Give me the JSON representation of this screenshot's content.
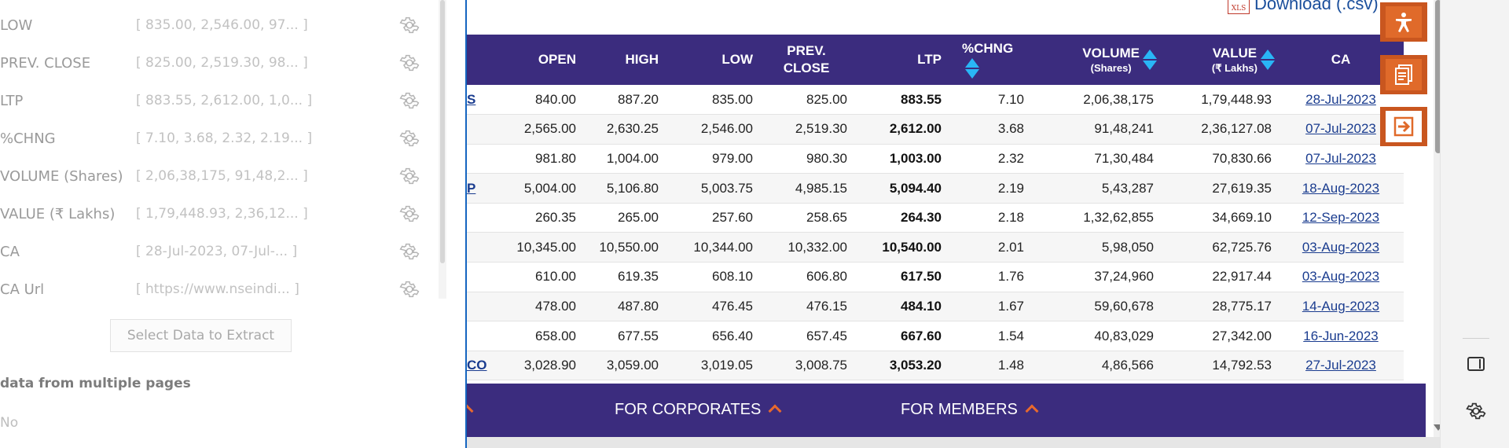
{
  "left_panel": {
    "fields": [
      {
        "name": "LOW",
        "value": "[ 835.00, 2,546.00, 97... ]"
      },
      {
        "name": "PREV. CLOSE",
        "value": "[ 825.00, 2,519.30, 98... ]"
      },
      {
        "name": "LTP",
        "value": "[ 883.55, 2,612.00, 1,0... ]"
      },
      {
        "name": "%CHNG",
        "value": "[ 7.10, 3.68, 2.32, 2.19... ]"
      },
      {
        "name": "VOLUME (Shares)",
        "value": "[ 2,06,38,175, 91,48,2... ]"
      },
      {
        "name": "VALUE (₹ Lakhs)",
        "value": "[ 1,79,448.93, 2,36,12... ]"
      },
      {
        "name": "CA",
        "value": "[ 28-Jul-2023, 07-Jul-... ]"
      },
      {
        "name": "CA Url",
        "value": "[ https://www.nseindi... ]"
      }
    ],
    "select_button_label": "Select Data to Extract",
    "multi_pages_label": "data from multiple pages",
    "multi_pages_value": "No"
  },
  "web": {
    "download_label": "Download (.csv)",
    "xls_label": "XLS",
    "table": {
      "headers": {
        "open": "OPEN",
        "high": "HIGH",
        "low": "LOW",
        "prev_close_line1": "PREV.",
        "prev_close_line2": "CLOSE",
        "ltp": "LTP",
        "chng": "%CHNG",
        "volume_line1": "VOLUME",
        "volume_line2": "(Shares)",
        "value_line1": "VALUE",
        "value_line2": "(₹ Lakhs)",
        "ca": "CA"
      },
      "rows": [
        {
          "symbol": "S",
          "open": "840.00",
          "high": "887.20",
          "low": "835.00",
          "prev": "825.00",
          "ltp": "883.55",
          "chng": "7.10",
          "volume": "2,06,38,175",
          "value": "1,79,448.93",
          "ca": "28-Jul-2023"
        },
        {
          "symbol": "",
          "open": "2,565.00",
          "high": "2,630.25",
          "low": "2,546.00",
          "prev": "2,519.30",
          "ltp": "2,612.00",
          "chng": "3.68",
          "volume": "91,48,241",
          "value": "2,36,127.08",
          "ca": "07-Jul-2023"
        },
        {
          "symbol": "",
          "open": "981.80",
          "high": "1,004.00",
          "low": "979.00",
          "prev": "980.30",
          "ltp": "1,003.00",
          "chng": "2.32",
          "volume": "71,30,484",
          "value": "70,830.66",
          "ca": "07-Jul-2023"
        },
        {
          "symbol": "P",
          "open": "5,004.00",
          "high": "5,106.80",
          "low": "5,003.75",
          "prev": "4,985.15",
          "ltp": "5,094.40",
          "chng": "2.19",
          "volume": "5,43,287",
          "value": "27,619.35",
          "ca": "18-Aug-2023"
        },
        {
          "symbol": "",
          "open": "260.35",
          "high": "265.00",
          "low": "257.60",
          "prev": "258.65",
          "ltp": "264.30",
          "chng": "2.18",
          "volume": "1,32,62,855",
          "value": "34,669.10",
          "ca": "12-Sep-2023"
        },
        {
          "symbol": "",
          "open": "10,345.00",
          "high": "10,550.00",
          "low": "10,344.00",
          "prev": "10,332.00",
          "ltp": "10,540.00",
          "chng": "2.01",
          "volume": "5,98,050",
          "value": "62,725.76",
          "ca": "03-Aug-2023"
        },
        {
          "symbol": "",
          "open": "610.00",
          "high": "619.35",
          "low": "608.10",
          "prev": "606.80",
          "ltp": "617.50",
          "chng": "1.76",
          "volume": "37,24,960",
          "value": "22,917.44",
          "ca": "03-Aug-2023"
        },
        {
          "symbol": "",
          "open": "478.00",
          "high": "487.80",
          "low": "476.45",
          "prev": "476.15",
          "ltp": "484.10",
          "chng": "1.67",
          "volume": "59,60,678",
          "value": "28,775.17",
          "ca": "14-Aug-2023"
        },
        {
          "symbol": "",
          "open": "658.00",
          "high": "677.55",
          "low": "656.40",
          "prev": "657.45",
          "ltp": "667.60",
          "chng": "1.54",
          "volume": "40,83,029",
          "value": "27,342.00",
          "ca": "16-Jun-2023"
        },
        {
          "symbol": "CO",
          "open": "3,028.90",
          "high": "3,059.00",
          "low": "3,019.05",
          "prev": "3,008.75",
          "ltp": "3,053.20",
          "chng": "1.48",
          "volume": "4,86,566",
          "value": "14,792.53",
          "ca": "27-Jul-2023"
        }
      ]
    },
    "footer": {
      "corporates": "FOR CORPORATES",
      "members": "FOR MEMBERS"
    },
    "colors": {
      "header_bg": "#3b2c7e",
      "accent_orange": "#e06a2a",
      "positive_green": "#1b8a1b",
      "sort_icon": "#29b6f6"
    },
    "floating_buttons": [
      "accessibility-icon",
      "document-icon",
      "exit-icon"
    ]
  },
  "browser_sidebar": {
    "icons": [
      "sidebar-panel-icon",
      "gear-icon"
    ]
  }
}
